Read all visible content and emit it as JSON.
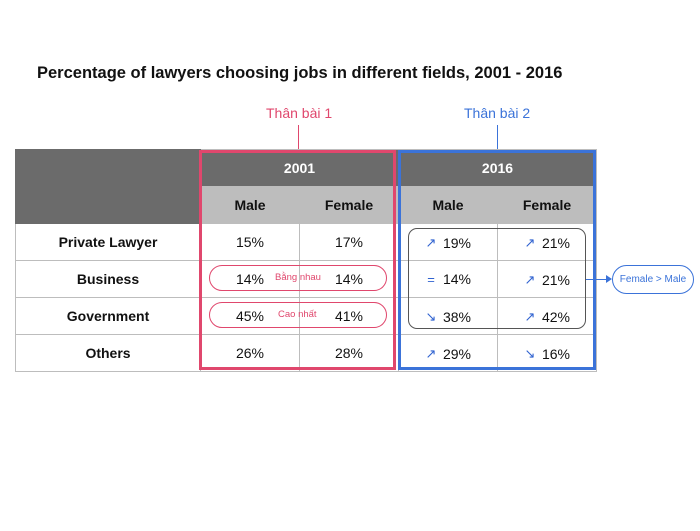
{
  "title": "Percentage of lawyers choosing jobs in different fields, 2001 - 2016",
  "section_labels": {
    "first": "Thân bài 1",
    "second": "Thân bài 2"
  },
  "years": [
    "2001",
    "2016"
  ],
  "subheaders": [
    "Male",
    "Female",
    "Male",
    "Female"
  ],
  "rows": [
    {
      "label": "Private Lawyer",
      "m2001": "15%",
      "f2001": "17%",
      "m2016": "19%",
      "f2016": "21%",
      "tm2016": "↗",
      "tf2016": "↗"
    },
    {
      "label": "Business",
      "m2001": "14%",
      "f2001": "14%",
      "m2016": "14%",
      "f2016": "21%",
      "tm2016": "=",
      "tf2016": "↗"
    },
    {
      "label": "Government",
      "m2001": "45%",
      "f2001": "41%",
      "m2016": "38%",
      "f2016": "42%",
      "tm2016": "↘",
      "tf2016": "↗"
    },
    {
      "label": "Others",
      "m2001": "26%",
      "f2001": "28%",
      "m2016": "29%",
      "f2016": "16%",
      "tm2016": "↗",
      "tf2016": "↘"
    }
  ],
  "annotations": {
    "business_2001": "Bằng nhau",
    "government_2001": "Cao nhất",
    "comparison_2016": "Female > Male"
  },
  "colors": {
    "section1": "#e0476d",
    "section2": "#3b73d9",
    "header_dark": "#6b6b6b",
    "header_light": "#bdbdbd"
  }
}
